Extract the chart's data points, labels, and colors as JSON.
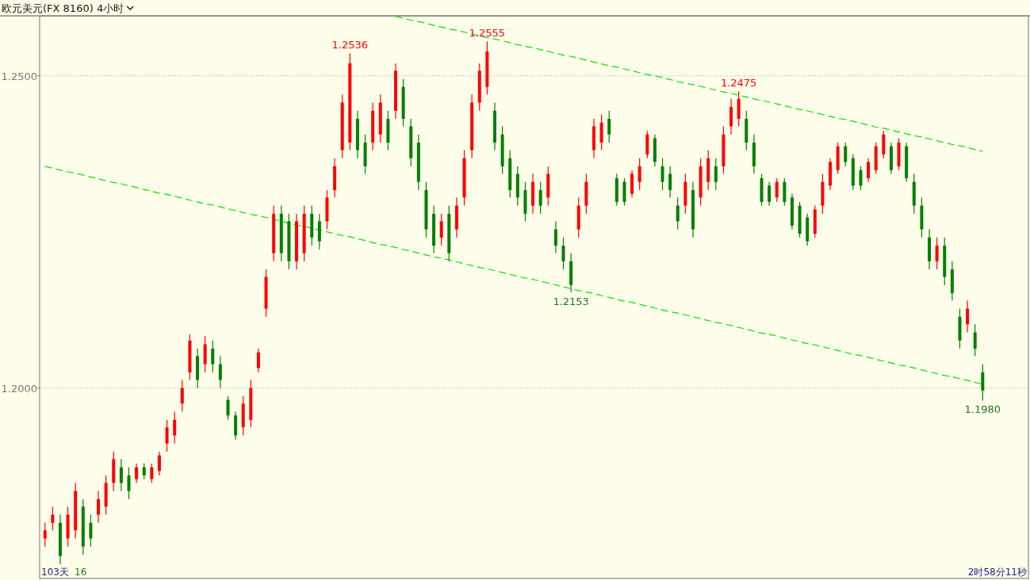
{
  "chart_data": {
    "type": "candlestick",
    "title": "欧元美元(FX 8160)  4小时",
    "categories": [
      null,
      null,
      null,
      null,
      null,
      null,
      null,
      null,
      null,
      null,
      null,
      null,
      null,
      null,
      null,
      null,
      null,
      null,
      null,
      null,
      null,
      null,
      null,
      null,
      null,
      null,
      null,
      null,
      null,
      null,
      null,
      null,
      null,
      null,
      null,
      null,
      null,
      null,
      null,
      null,
      null,
      null,
      null,
      null,
      null,
      null,
      null,
      null,
      null,
      null,
      null,
      null,
      null,
      null,
      null,
      null,
      null,
      null,
      null,
      null,
      null,
      null,
      null,
      null,
      null,
      null,
      null,
      null,
      null,
      null,
      null,
      null,
      null,
      null,
      null,
      null,
      null,
      null,
      null,
      null,
      null,
      null,
      null,
      null,
      null,
      null,
      null,
      null,
      null,
      null,
      null,
      null,
      null,
      null,
      null,
      null,
      null,
      null,
      null,
      null,
      null,
      null,
      null,
      null,
      null,
      null,
      null,
      null,
      null,
      null,
      null,
      null,
      null,
      null,
      null,
      null,
      null,
      null,
      null,
      null,
      null,
      null,
      null,
      null
    ],
    "ohlc": [
      [
        1.1759,
        1.1784,
        1.1746,
        1.1772
      ],
      [
        1.1784,
        1.181,
        1.1772,
        1.1797
      ],
      [
        1.1784,
        1.1797,
        1.1718,
        1.1731
      ],
      [
        1.1759,
        1.181,
        1.1746,
        1.1797
      ],
      [
        1.1772,
        1.1848,
        1.1759,
        1.1835
      ],
      [
        1.181,
        1.1822,
        1.1733,
        1.1746
      ],
      [
        1.1784,
        1.1797,
        1.1746,
        1.1759
      ],
      [
        1.1797,
        1.1835,
        1.1784,
        1.1822
      ],
      [
        1.181,
        1.186,
        1.1797,
        1.1848
      ],
      [
        1.1848,
        1.1898,
        1.1835,
        1.1886
      ],
      [
        1.1873,
        1.1886,
        1.1835,
        1.1848
      ],
      [
        1.186,
        1.1873,
        1.1822,
        1.1835
      ],
      [
        1.1854,
        1.1879,
        1.1848,
        1.1873
      ],
      [
        1.1873,
        1.1879,
        1.1854,
        1.186
      ],
      [
        1.1854,
        1.1879,
        1.1848,
        1.1873
      ],
      [
        1.1867,
        1.1898,
        1.186,
        1.1892
      ],
      [
        1.1911,
        1.1949,
        1.1898,
        1.1937
      ],
      [
        1.1924,
        1.1962,
        1.1911,
        1.1949
      ],
      [
        1.1975,
        1.2013,
        1.1962,
        1.2
      ],
      [
        1.2025,
        1.2086,
        1.2013,
        1.2076
      ],
      [
        1.2051,
        1.2063,
        1.2,
        1.2013
      ],
      [
        1.2038,
        1.2083,
        1.2025,
        1.207
      ],
      [
        1.2063,
        1.2076,
        1.2025,
        1.2038
      ],
      [
        1.2038,
        1.2051,
        1.2,
        1.2013
      ],
      [
        1.1981,
        1.1987,
        1.1949,
        1.1956
      ],
      [
        1.1956,
        1.1962,
        1.1917,
        1.1924
      ],
      [
        1.1937,
        1.1987,
        1.1924,
        1.1975
      ],
      [
        1.1949,
        1.2013,
        1.1937,
        1.2
      ],
      [
        1.2032,
        1.2063,
        1.2025,
        1.2057
      ],
      [
        1.2127,
        1.219,
        1.2114,
        1.2178
      ],
      [
        1.2216,
        1.2292,
        1.2203,
        1.2279
      ],
      [
        1.2279,
        1.2292,
        1.2203,
        1.2216
      ],
      [
        1.2267,
        1.2279,
        1.219,
        1.2203
      ],
      [
        1.2203,
        1.2279,
        1.219,
        1.2267
      ],
      [
        1.2216,
        1.2292,
        1.2203,
        1.2279
      ],
      [
        1.2279,
        1.2292,
        1.2228,
        1.2241
      ],
      [
        1.2267,
        1.2279,
        1.2222,
        1.2235
      ],
      [
        1.2267,
        1.2317,
        1.2254,
        1.2305
      ],
      [
        1.2317,
        1.2368,
        1.2305,
        1.2355
      ],
      [
        1.2381,
        1.247,
        1.2368,
        1.2457
      ],
      [
        1.2393,
        1.2536,
        1.2381,
        1.252
      ],
      [
        1.2431,
        1.2444,
        1.2368,
        1.2381
      ],
      [
        1.2393,
        1.2406,
        1.2343,
        1.2355
      ],
      [
        1.2393,
        1.2457,
        1.2381,
        1.2444
      ],
      [
        1.2406,
        1.247,
        1.2393,
        1.2457
      ],
      [
        1.2431,
        1.2444,
        1.2381,
        1.2393
      ],
      [
        1.2444,
        1.252,
        1.2431,
        1.2508
      ],
      [
        1.2482,
        1.2495,
        1.2419,
        1.2431
      ],
      [
        1.2419,
        1.2431,
        1.2355,
        1.2368
      ],
      [
        1.2393,
        1.2406,
        1.2317,
        1.233
      ],
      [
        1.2317,
        1.233,
        1.2241,
        1.2254
      ],
      [
        1.2279,
        1.2292,
        1.2216,
        1.2228
      ],
      [
        1.2241,
        1.2279,
        1.2228,
        1.2267
      ],
      [
        1.2279,
        1.2292,
        1.2203,
        1.2216
      ],
      [
        1.2254,
        1.2305,
        1.2241,
        1.2292
      ],
      [
        1.2305,
        1.2381,
        1.2292,
        1.2368
      ],
      [
        1.2381,
        1.247,
        1.2368,
        1.2457
      ],
      [
        1.2457,
        1.252,
        1.2444,
        1.2508
      ],
      [
        1.2482,
        1.2555,
        1.247,
        1.2539
      ],
      [
        1.2444,
        1.2457,
        1.2381,
        1.2393
      ],
      [
        1.2406,
        1.2419,
        1.2343,
        1.2355
      ],
      [
        1.2368,
        1.2381,
        1.2305,
        1.2317
      ],
      [
        1.2343,
        1.2355,
        1.2292,
        1.2305
      ],
      [
        1.2317,
        1.233,
        1.2267,
        1.2279
      ],
      [
        1.2292,
        1.2343,
        1.2279,
        1.233
      ],
      [
        1.2317,
        1.233,
        1.2279,
        1.2292
      ],
      [
        1.2305,
        1.2355,
        1.2292,
        1.2343
      ],
      [
        1.2254,
        1.2267,
        1.2216,
        1.2228
      ],
      [
        1.2228,
        1.2241,
        1.219,
        1.2203
      ],
      [
        1.2203,
        1.2216,
        1.2153,
        1.2165
      ],
      [
        1.2254,
        1.2305,
        1.2241,
        1.2292
      ],
      [
        1.2292,
        1.2343,
        1.2279,
        1.233
      ],
      [
        1.2381,
        1.2431,
        1.2368,
        1.2419
      ],
      [
        1.2393,
        1.2438,
        1.2381,
        1.2425
      ],
      [
        1.2431,
        1.2444,
        1.2393,
        1.2406
      ],
      [
        1.2336,
        1.2343,
        1.2292,
        1.2298
      ],
      [
        1.233,
        1.2336,
        1.2292,
        1.2298
      ],
      [
        1.2311,
        1.2349,
        1.2305,
        1.2343
      ],
      [
        1.233,
        1.2368,
        1.2317,
        1.2355
      ],
      [
        1.2374,
        1.2412,
        1.2368,
        1.2406
      ],
      [
        1.24,
        1.2406,
        1.2355,
        1.2362
      ],
      [
        1.2355,
        1.2368,
        1.2317,
        1.233
      ],
      [
        1.2343,
        1.2355,
        1.2305,
        1.2317
      ],
      [
        1.2292,
        1.2305,
        1.2254,
        1.2267
      ],
      [
        1.2292,
        1.2343,
        1.2279,
        1.233
      ],
      [
        1.2317,
        1.233,
        1.2241,
        1.2254
      ],
      [
        1.2305,
        1.2368,
        1.2292,
        1.2355
      ],
      [
        1.233,
        1.2381,
        1.2317,
        1.2368
      ],
      [
        1.2355,
        1.2368,
        1.2317,
        1.233
      ],
      [
        1.2355,
        1.2419,
        1.2343,
        1.2406
      ],
      [
        1.2419,
        1.2463,
        1.2406,
        1.245
      ],
      [
        1.2431,
        1.2475,
        1.2419,
        1.2463
      ],
      [
        1.2431,
        1.2444,
        1.2381,
        1.2393
      ],
      [
        1.2393,
        1.2406,
        1.2343,
        1.2355
      ],
      [
        1.2336,
        1.2343,
        1.2292,
        1.2298
      ],
      [
        1.2324,
        1.233,
        1.2292,
        1.2298
      ],
      [
        1.2305,
        1.2336,
        1.2298,
        1.233
      ],
      [
        1.233,
        1.2336,
        1.2292,
        1.2298
      ],
      [
        1.2305,
        1.2311,
        1.2254,
        1.226
      ],
      [
        1.2292,
        1.2298,
        1.2241,
        1.2247
      ],
      [
        1.2273,
        1.2279,
        1.2228,
        1.2235
      ],
      [
        1.2247,
        1.2292,
        1.2241,
        1.2286
      ],
      [
        1.2292,
        1.2343,
        1.2279,
        1.233
      ],
      [
        1.2324,
        1.2368,
        1.2317,
        1.2362
      ],
      [
        1.2349,
        1.2393,
        1.2343,
        1.2387
      ],
      [
        1.2387,
        1.2393,
        1.2355,
        1.2362
      ],
      [
        1.2368,
        1.2374,
        1.2317,
        1.2324
      ],
      [
        1.2349,
        1.2355,
        1.2317,
        1.2324
      ],
      [
        1.2336,
        1.2368,
        1.233,
        1.2362
      ],
      [
        1.2349,
        1.2393,
        1.2343,
        1.2387
      ],
      [
        1.2374,
        1.2412,
        1.2368,
        1.2406
      ],
      [
        1.2387,
        1.2393,
        1.2343,
        1.2349
      ],
      [
        1.2355,
        1.24,
        1.2349,
        1.2393
      ],
      [
        1.2387,
        1.2393,
        1.233,
        1.2336
      ],
      [
        1.233,
        1.2343,
        1.2279,
        1.2292
      ],
      [
        1.2292,
        1.2305,
        1.2241,
        1.2254
      ],
      [
        1.2241,
        1.2254,
        1.219,
        1.2203
      ],
      [
        1.2203,
        1.2241,
        1.219,
        1.2228
      ],
      [
        1.2228,
        1.2241,
        1.2165,
        1.2178
      ],
      [
        1.219,
        1.2203,
        1.214,
        1.2152
      ],
      [
        1.2114,
        1.2127,
        1.2063,
        1.2076
      ],
      [
        1.2102,
        1.214,
        1.2089,
        1.2127
      ],
      [
        1.2089,
        1.2102,
        1.2051,
        1.2063
      ],
      [
        1.2025,
        1.2038,
        1.198,
        1.1996
      ]
    ],
    "colors": [
      "#ff0000",
      "#ff0000",
      "#008000",
      "#ff0000",
      "#ff0000",
      "#008000",
      "#008000",
      "#ff0000",
      "#ff0000",
      "#ff0000",
      "#008000",
      "#008000",
      "#ff0000",
      "#008000",
      "#ff0000",
      "#ff0000",
      "#ff0000",
      "#ff0000",
      "#ff0000",
      "#ff0000",
      "#008000",
      "#ff0000",
      "#008000",
      "#008000",
      "#008000",
      "#008000",
      "#ff0000",
      "#ff0000",
      "#ff0000",
      "#ff0000",
      "#ff0000",
      "#008000",
      "#008000",
      "#ff0000",
      "#ff0000",
      "#008000",
      "#008000",
      "#ff0000",
      "#ff0000",
      "#ff0000",
      "#ff0000",
      "#008000",
      "#008000",
      "#ff0000",
      "#ff0000",
      "#008000",
      "#ff0000",
      "#008000",
      "#008000",
      "#008000",
      "#008000",
      "#008000",
      "#ff0000",
      "#008000",
      "#ff0000",
      "#ff0000",
      "#ff0000",
      "#ff0000",
      "#ff0000",
      "#008000",
      "#008000",
      "#008000",
      "#008000",
      "#008000",
      "#ff0000",
      "#008000",
      "#ff0000",
      "#008000",
      "#008000",
      "#008000",
      "#ff0000",
      "#ff0000",
      "#ff0000",
      "#ff0000",
      "#008000",
      "#008000",
      "#008000",
      "#ff0000",
      "#ff0000",
      "#ff0000",
      "#008000",
      "#008000",
      "#008000",
      "#008000",
      "#ff0000",
      "#008000",
      "#ff0000",
      "#ff0000",
      "#008000",
      "#ff0000",
      "#ff0000",
      "#ff0000",
      "#008000",
      "#008000",
      "#008000",
      "#008000",
      "#ff0000",
      "#008000",
      "#008000",
      "#008000",
      "#008000",
      "#ff0000",
      "#ff0000",
      "#ff0000",
      "#ff0000",
      "#008000",
      "#008000",
      "#008000",
      "#ff0000",
      "#ff0000",
      "#ff0000",
      "#008000",
      "#ff0000",
      "#008000",
      "#008000",
      "#008000",
      "#008000",
      "#ff0000",
      "#008000",
      "#008000",
      "#008000",
      "#ff0000",
      "#008000",
      "#008000"
    ],
    "series": [
      {
        "type": "line",
        "values": [
          null,
          null,
          null,
          null,
          null,
          null,
          null,
          null,
          null,
          null,
          null,
          null,
          null,
          null,
          null,
          null,
          null,
          null,
          null,
          null,
          null,
          null,
          null,
          null,
          null,
          null,
          null,
          null,
          null,
          null,
          null,
          null,
          null,
          null,
          null,
          null,
          null,
          null,
          null,
          null,
          null,
          null,
          null,
          null,
          null,
          null,
          1.2595,
          1.2592,
          1.2589,
          1.2587,
          1.2584,
          1.2581,
          1.2578,
          1.2575,
          1.2573,
          1.257,
          1.2567,
          1.2564,
          1.2561,
          1.2559,
          1.2556,
          1.2553,
          1.255,
          1.2547,
          1.2545,
          1.2542,
          1.2539,
          1.2536,
          1.2533,
          1.2531,
          1.2528,
          1.2525,
          1.2522,
          1.2519,
          1.2516,
          1.2514,
          1.2511,
          1.2508,
          1.2505,
          1.2502,
          1.25,
          1.2497,
          1.2494,
          1.2491,
          1.2488,
          1.2486,
          1.2483,
          1.248,
          1.2477,
          1.2474,
          1.2472,
          1.2469,
          1.2466,
          1.2463,
          1.246,
          1.2458,
          1.2455,
          1.2452,
          1.2449,
          1.2446,
          1.2444,
          1.2441,
          1.2438,
          1.2435,
          1.2432,
          1.243,
          1.2427,
          1.2424,
          1.2421,
          1.2418,
          1.2416,
          1.2413,
          1.241,
          1.2407,
          1.2404,
          1.2402,
          1.2399,
          1.2396,
          1.2393,
          1.239,
          1.2388,
          1.2385,
          1.2382,
          1.2379
        ],
        "color": "#00e600",
        "line_style": "dashed"
      },
      {
        "type": "line",
        "values": [
          1.2355,
          1.2352,
          1.2349,
          1.2346,
          1.2344,
          1.2341,
          1.2338,
          1.2335,
          1.2332,
          1.2329,
          1.2327,
          1.2324,
          1.2321,
          1.2318,
          1.2315,
          1.2312,
          1.231,
          1.2307,
          1.2304,
          1.2301,
          1.2298,
          1.2295,
          1.2293,
          1.229,
          1.2287,
          1.2284,
          1.2281,
          1.2278,
          1.2276,
          1.2273,
          1.227,
          1.2267,
          1.2264,
          1.2261,
          1.2259,
          1.2256,
          1.2253,
          1.225,
          1.2247,
          1.2244,
          1.2242,
          1.2239,
          1.2236,
          1.2233,
          1.223,
          1.2228,
          1.2225,
          1.2222,
          1.2219,
          1.2216,
          1.2213,
          1.221,
          1.2208,
          1.2205,
          1.2202,
          1.2199,
          1.2196,
          1.2193,
          1.2191,
          1.2188,
          1.2185,
          1.2182,
          1.2179,
          1.2176,
          1.2174,
          1.2171,
          1.2168,
          1.2165,
          1.2162,
          1.2159,
          1.2156,
          1.2154,
          1.2151,
          1.2148,
          1.2145,
          1.2142,
          1.2139,
          1.2137,
          1.2134,
          1.2131,
          1.2128,
          1.2125,
          1.2122,
          1.212,
          1.2117,
          1.2114,
          1.2111,
          1.2108,
          1.2105,
          1.2103,
          1.21,
          1.2097,
          1.2094,
          1.2091,
          1.2088,
          1.2086,
          1.2083,
          1.208,
          1.2077,
          1.2074,
          1.2071,
          1.2069,
          1.2066,
          1.2063,
          1.206,
          1.2057,
          1.2054,
          1.2052,
          1.2049,
          1.2046,
          1.2043,
          1.204,
          1.2037,
          1.2035,
          1.2032,
          1.2029,
          1.2026,
          1.2023,
          1.202,
          1.2018,
          1.2015,
          1.2012,
          1.2009,
          1.2006
        ],
        "color": "#00e600",
        "line_style": "dashed"
      }
    ],
    "value_labels": [
      null,
      null,
      null,
      null,
      null,
      null,
      null,
      null,
      null,
      null,
      null,
      null,
      null,
      null,
      null,
      null,
      null,
      null,
      null,
      null,
      null,
      null,
      null,
      null,
      null,
      null,
      null,
      null,
      null,
      null,
      null,
      null,
      null,
      null,
      null,
      null,
      null,
      null,
      null,
      null,
      "1.2536",
      null,
      null,
      null,
      null,
      null,
      null,
      null,
      null,
      null,
      null,
      null,
      null,
      null,
      null,
      null,
      null,
      null,
      "1.2555",
      null,
      null,
      null,
      null,
      null,
      null,
      null,
      null,
      null,
      null,
      "1.2153",
      null,
      null,
      null,
      null,
      null,
      null,
      null,
      null,
      null,
      null,
      null,
      null,
      null,
      null,
      null,
      null,
      null,
      null,
      null,
      null,
      null,
      "1.2475",
      null,
      null,
      null,
      null,
      null,
      null,
      null,
      null,
      null,
      null,
      null,
      null,
      null,
      null,
      null,
      null,
      null,
      null,
      null,
      null,
      null,
      null,
      null,
      null,
      null,
      null,
      null,
      null,
      null,
      null,
      null,
      "1.1980"
    ],
    "ylim": [
      1.1695,
      1.2596
    ],
    "yticks": [
      {
        "value": 1.25,
        "label": "1.2500"
      },
      {
        "value": 1.2,
        "label": "1.2000"
      }
    ],
    "grid": "y",
    "annotations": [
      "103天",
      "16",
      "2时58分11秒"
    ]
  }
}
